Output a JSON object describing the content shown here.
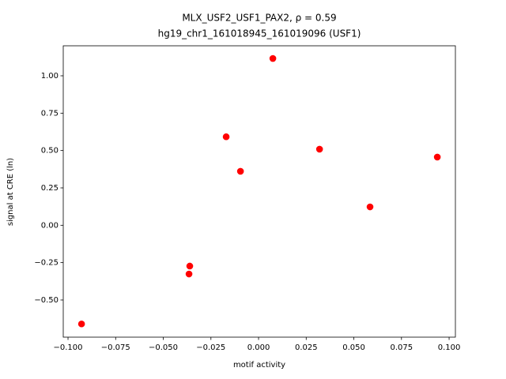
{
  "chart_data": {
    "type": "scatter",
    "title": "MLX_USF2_USF1_PAX2, ρ = 0.59",
    "subtitle": "hg19_chr1_161018945_161019096 (USF1)",
    "x_label": "motif activity",
    "y_label": "signal at CRE (ln)",
    "x": [
      -0.0929,
      -0.0361,
      -0.0365,
      -0.017,
      -0.0095,
      0.0075,
      0.032,
      0.0585,
      0.0938
    ],
    "values": [
      -0.66,
      -0.273,
      -0.326,
      0.592,
      0.361,
      1.116,
      0.509,
      0.123,
      0.456
    ],
    "color": "#ff0000",
    "xlim": [
      -0.1025,
      0.1033
    ],
    "ylim": [
      -0.7485,
      1.2007
    ],
    "xticks": [
      {
        "value": -0.1,
        "label": "−0.100"
      },
      {
        "value": -0.075,
        "label": "−0.075"
      },
      {
        "value": -0.05,
        "label": "−0.050"
      },
      {
        "value": -0.025,
        "label": "−0.025"
      },
      {
        "value": 0,
        "label": "0.000"
      },
      {
        "value": 0.025,
        "label": "0.025"
      },
      {
        "value": 0.05,
        "label": "0.050"
      },
      {
        "value": 0.075,
        "label": "0.075"
      },
      {
        "value": 0.1,
        "label": "0.100"
      }
    ],
    "yticks": [
      {
        "value": -0.5,
        "label": "−0.50"
      },
      {
        "value": -0.25,
        "label": "−0.25"
      },
      {
        "value": 0,
        "label": "0.00"
      },
      {
        "value": 0.25,
        "label": "0.25"
      },
      {
        "value": 0.5,
        "label": "0.50"
      },
      {
        "value": 0.75,
        "label": "0.75"
      },
      {
        "value": 1,
        "label": "1.00"
      }
    ],
    "grid": false
  }
}
